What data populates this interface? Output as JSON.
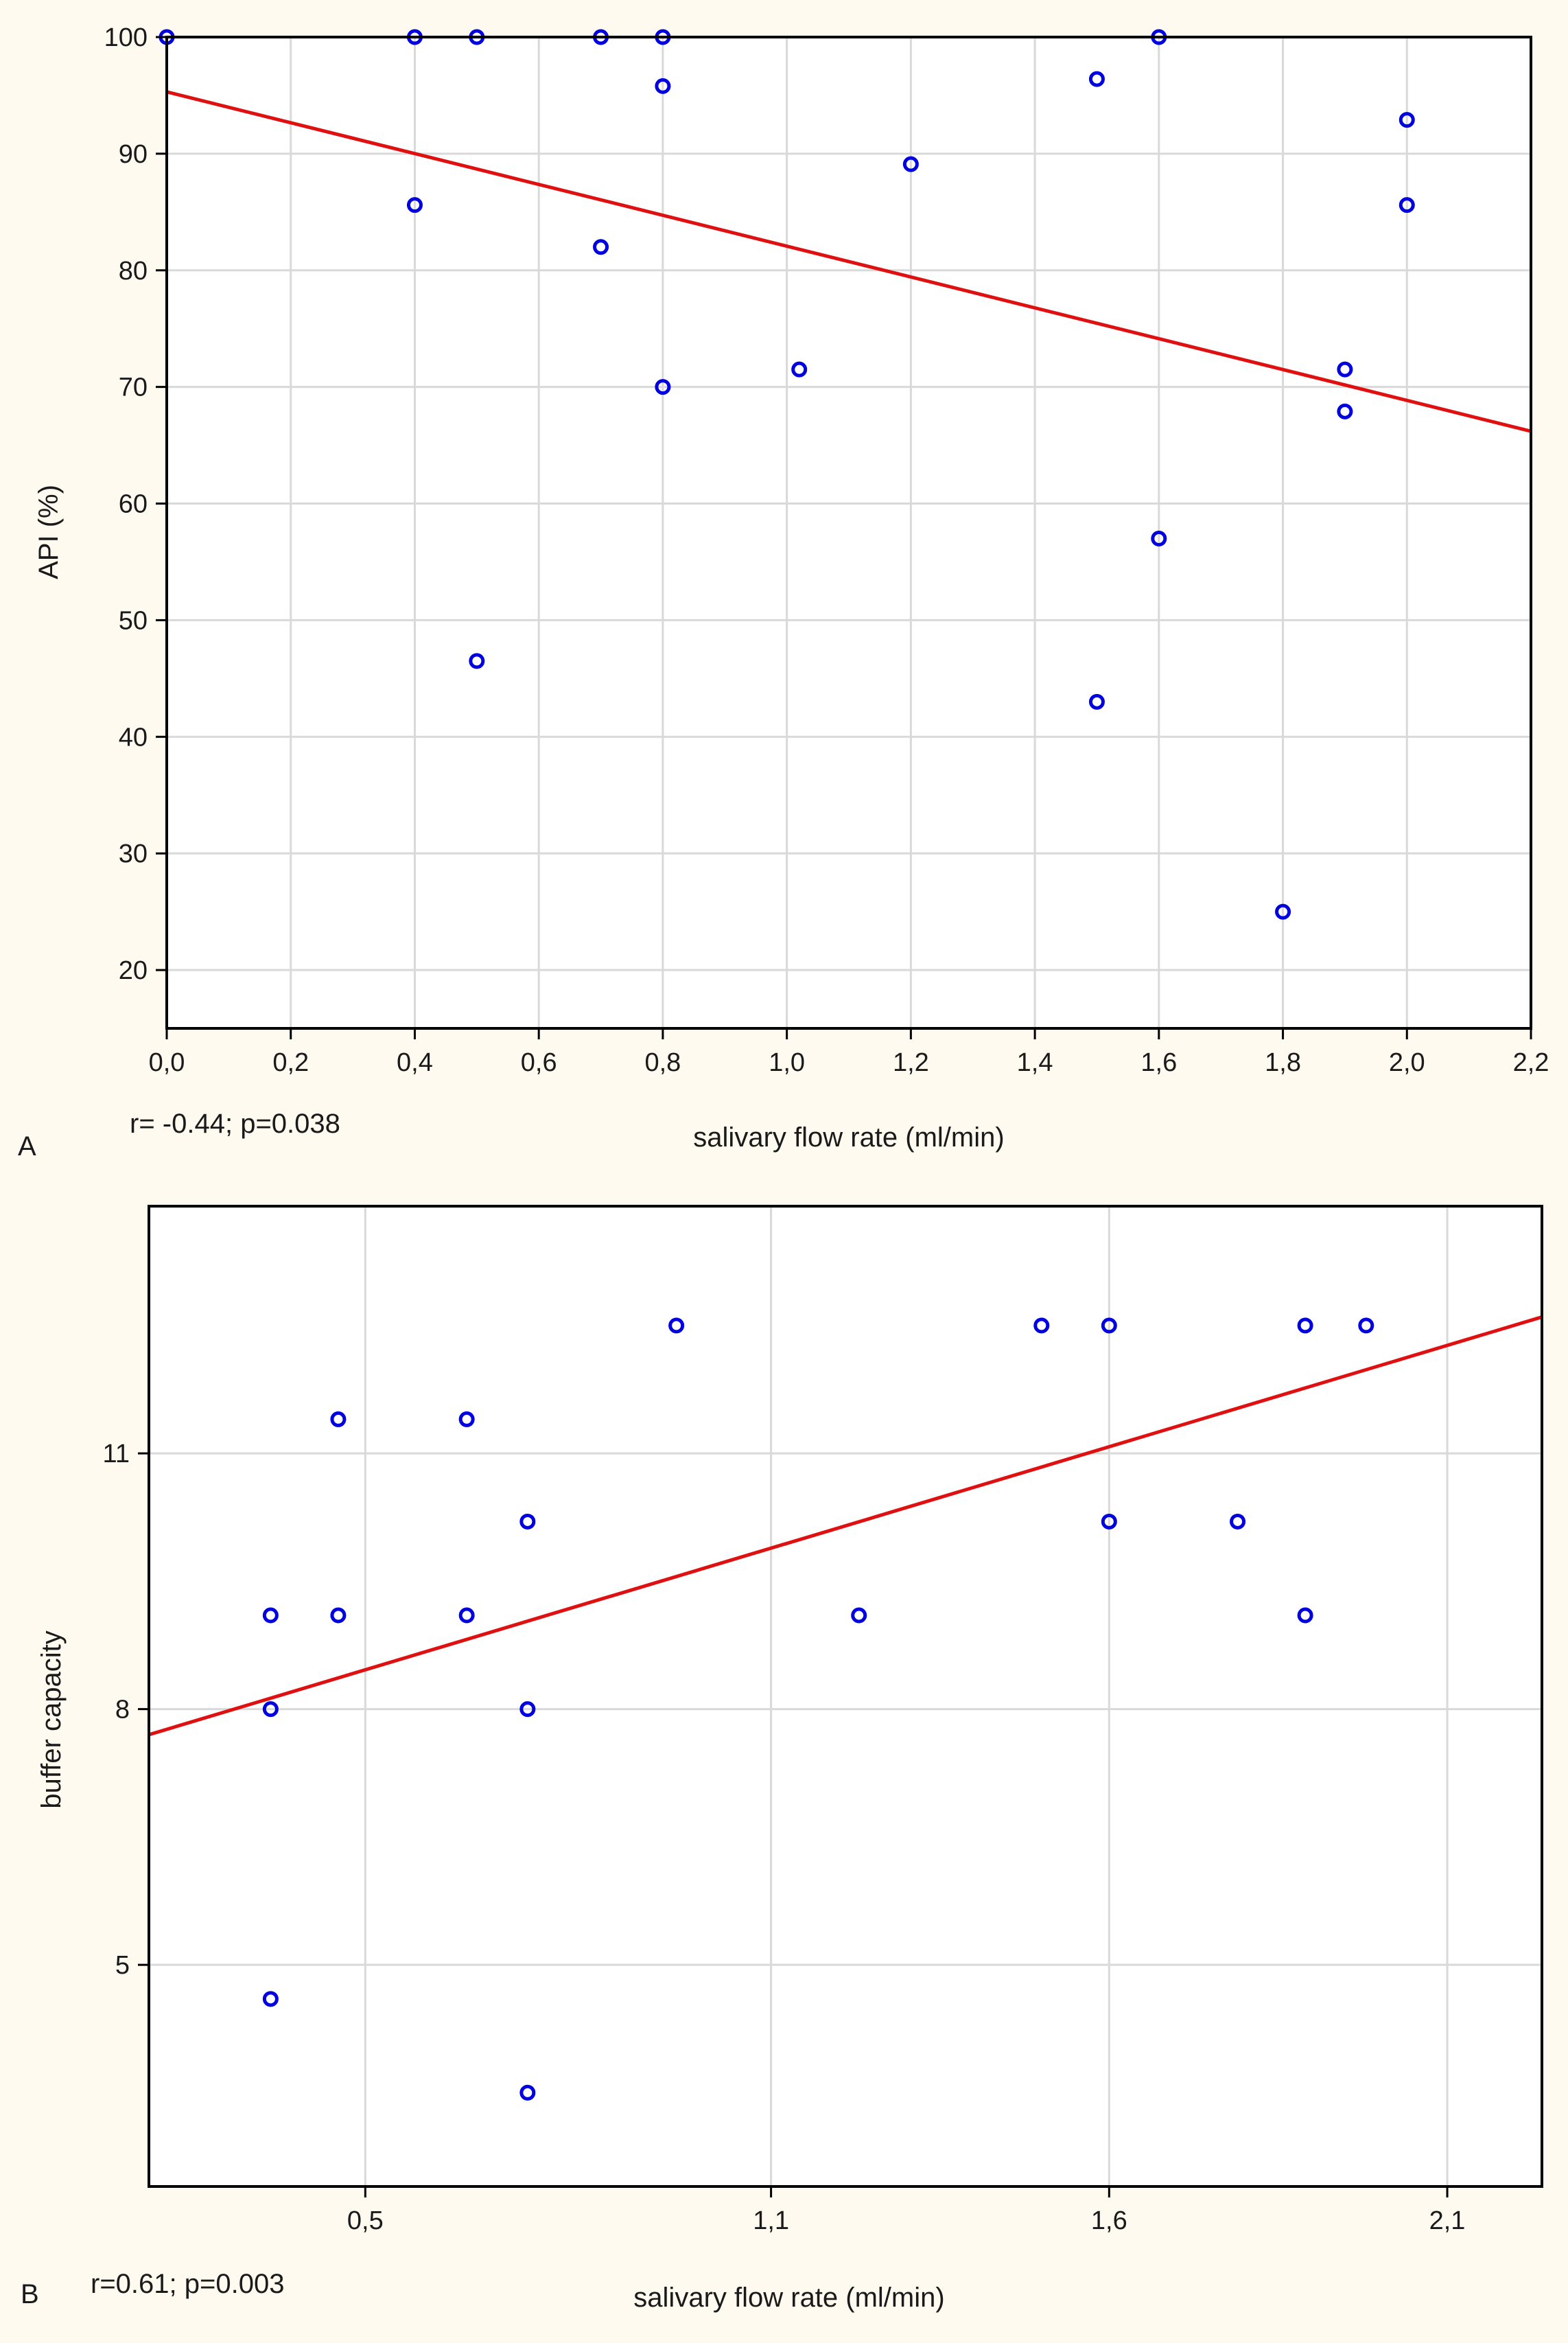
{
  "colors": {
    "background": "#fffaf0",
    "plot_background": "#ffffff",
    "grid": "#d9d9d9",
    "points": "#0000e0",
    "fit_line": "#e01010",
    "axis": "#000000"
  },
  "chart_data": [
    {
      "type": "scatter",
      "panel": "A",
      "xlabel": "salivary flow rate (ml/min)",
      "ylabel": "API (%)",
      "xlim": [
        0.0,
        2.2
      ],
      "ylim": [
        15,
        100
      ],
      "xticks": [
        0.0,
        0.2,
        0.4,
        0.6,
        0.8,
        1.0,
        1.2,
        1.4,
        1.6,
        1.8,
        2.0,
        2.2
      ],
      "xtick_labels": [
        "0,0",
        "0,2",
        "0,4",
        "0,6",
        "0,8",
        "1,0",
        "1,2",
        "1,4",
        "1,6",
        "1,8",
        "2,0",
        "2,2"
      ],
      "yticks": [
        20,
        30,
        40,
        50,
        60,
        70,
        80,
        90,
        100
      ],
      "ytick_labels": [
        "20",
        "30",
        "40",
        "50",
        "60",
        "70",
        "80",
        "90",
        "100"
      ],
      "grid": true,
      "stat": "r= -0.44; p=0.038",
      "points": [
        {
          "x": 0.0,
          "y": 100
        },
        {
          "x": 0.4,
          "y": 100
        },
        {
          "x": 0.5,
          "y": 100
        },
        {
          "x": 0.7,
          "y": 100
        },
        {
          "x": 0.8,
          "y": 100
        },
        {
          "x": 1.6,
          "y": 100
        },
        {
          "x": 0.8,
          "y": 95.8
        },
        {
          "x": 1.5,
          "y": 96.4
        },
        {
          "x": 2.0,
          "y": 92.9
        },
        {
          "x": 1.2,
          "y": 89.1
        },
        {
          "x": 0.4,
          "y": 85.6
        },
        {
          "x": 2.0,
          "y": 85.6
        },
        {
          "x": 0.7,
          "y": 82.0
        },
        {
          "x": 1.02,
          "y": 71.5
        },
        {
          "x": 1.9,
          "y": 71.5
        },
        {
          "x": 0.8,
          "y": 70.0
        },
        {
          "x": 1.9,
          "y": 67.9
        },
        {
          "x": 1.6,
          "y": 57.0
        },
        {
          "x": 0.5,
          "y": 46.5
        },
        {
          "x": 1.5,
          "y": 43.0
        },
        {
          "x": 1.8,
          "y": 25.0
        }
      ],
      "fit_line": {
        "x": [
          0.0,
          2.2
        ],
        "y": [
          95.3,
          66.2
        ]
      }
    },
    {
      "type": "scatter",
      "panel": "B",
      "xlabel": "salivary flow rate (ml/min)",
      "ylabel": "buffer capacity",
      "xlim": [
        0.18,
        2.24
      ],
      "ylim": [
        2.4,
        13.9
      ],
      "xticks": [
        0.5,
        1.1,
        1.6,
        2.1
      ],
      "xtick_labels": [
        "0,5",
        "1,1",
        "1,6",
        "2,1"
      ],
      "yticks": [
        5,
        8,
        11
      ],
      "ytick_labels": [
        "5",
        "8",
        "11"
      ],
      "grid": true,
      "stat": "r=0.61; p=0.003",
      "points": [
        {
          "x": 0.36,
          "y": 4.6
        },
        {
          "x": 0.36,
          "y": 8.0
        },
        {
          "x": 0.36,
          "y": 9.1
        },
        {
          "x": 0.46,
          "y": 9.1
        },
        {
          "x": 0.46,
          "y": 11.4
        },
        {
          "x": 0.65,
          "y": 9.1
        },
        {
          "x": 0.65,
          "y": 11.4
        },
        {
          "x": 0.74,
          "y": 3.5
        },
        {
          "x": 0.74,
          "y": 8.0
        },
        {
          "x": 0.74,
          "y": 10.2
        },
        {
          "x": 0.96,
          "y": 12.5
        },
        {
          "x": 1.23,
          "y": 9.1
        },
        {
          "x": 1.5,
          "y": 12.5
        },
        {
          "x": 1.6,
          "y": 12.5
        },
        {
          "x": 1.6,
          "y": 10.2
        },
        {
          "x": 1.79,
          "y": 10.2
        },
        {
          "x": 1.89,
          "y": 12.5
        },
        {
          "x": 1.89,
          "y": 9.1
        },
        {
          "x": 1.98,
          "y": 12.5
        }
      ],
      "fit_line": {
        "x": [
          0.18,
          2.24
        ],
        "y": [
          7.7,
          12.6
        ]
      }
    }
  ]
}
